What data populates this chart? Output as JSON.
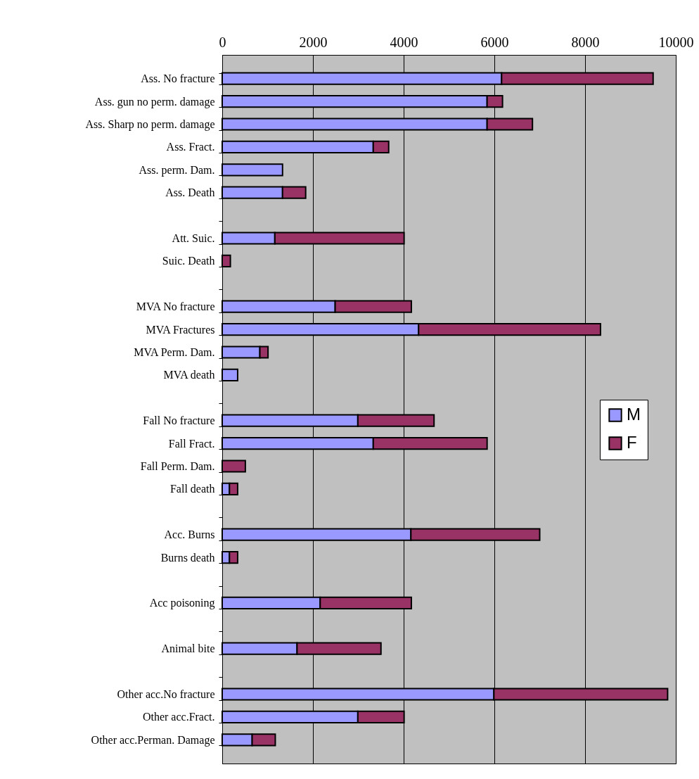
{
  "chart_data": {
    "type": "bar",
    "orientation": "horizontal",
    "stacked": true,
    "categories": [
      "Ass. No fracture",
      "Ass. gun no perm. damage",
      "Ass. Sharp no perm. damage",
      "Ass. Fract.",
      "Ass. perm. Dam.",
      "Ass. Death",
      null,
      "Att. Suic.",
      "Suic. Death",
      null,
      "MVA No fracture",
      "MVA Fractures",
      "MVA Perm. Dam.",
      "MVA death",
      null,
      "Fall No fracture",
      "Fall Fract.",
      "Fall Perm. Dam.",
      "Fall death",
      null,
      "Acc. Burns",
      "Burns death",
      null,
      "Acc poisoning",
      null,
      "Animal bite",
      null,
      "Other acc.No fracture",
      "Other acc.Fract.",
      "Other acc.Perman. Damage"
    ],
    "series": [
      {
        "name": "M",
        "color": "#9999ff",
        "values": [
          6160,
          5840,
          5840,
          3330,
          1330,
          1330,
          null,
          1160,
          null,
          null,
          2490,
          4330,
          830,
          340,
          null,
          2990,
          3330,
          null,
          160,
          null,
          4160,
          160,
          null,
          2160,
          null,
          1650,
          null,
          5990,
          2990,
          660
        ]
      },
      {
        "name": "F",
        "color": "#993366",
        "values": [
          3340,
          340,
          1000,
          340,
          null,
          510,
          null,
          2850,
          180,
          null,
          1680,
          4010,
          180,
          null,
          null,
          1680,
          2510,
          510,
          180,
          null,
          2840,
          180,
          null,
          2010,
          null,
          1850,
          null,
          3830,
          1020,
          510
        ]
      }
    ],
    "xlim": [
      0,
      10000
    ],
    "xticks": [
      0,
      2000,
      4000,
      6000,
      8000,
      10000
    ],
    "grid": "x",
    "legend": "right"
  }
}
